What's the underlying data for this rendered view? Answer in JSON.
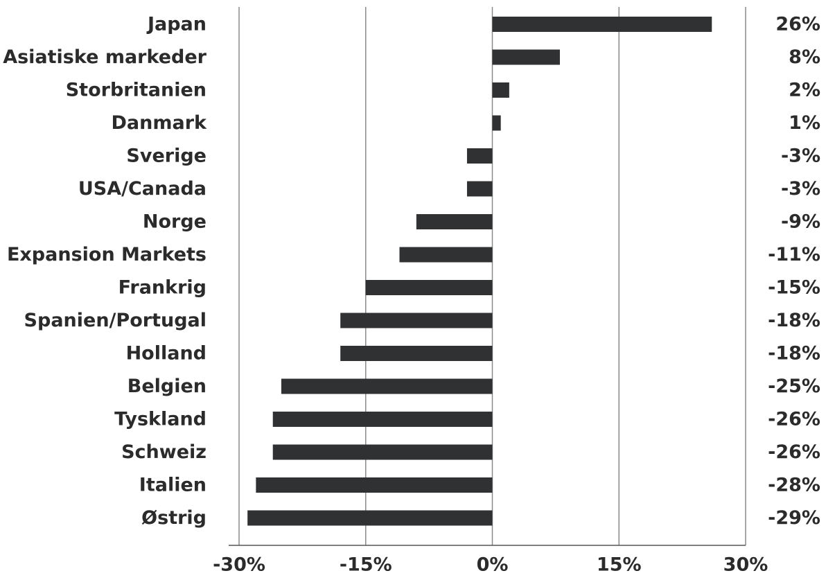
{
  "chart_data": {
    "type": "bar",
    "orientation": "horizontal",
    "categories": [
      "Japan",
      "Asiatiske markeder",
      "Storbritanien",
      "Danmark",
      "Sverige",
      "USA/Canada",
      "Norge",
      "Expansion Markets",
      "Frankrig",
      "Spanien/Portugal",
      "Holland",
      "Belgien",
      "Tyskland",
      "Schweiz",
      "Italien",
      "Østrig"
    ],
    "values": [
      26,
      8,
      2,
      1,
      -3,
      -3,
      -9,
      -11,
      -15,
      -18,
      -18,
      -25,
      -26,
      -26,
      -28,
      -29
    ],
    "value_labels": [
      "26%",
      "8%",
      "2%",
      "1%",
      "-3%",
      "-3%",
      "-9%",
      "-11%",
      "-15%",
      "-18%",
      "-18%",
      "-25%",
      "-26%",
      "-26%",
      "-28%",
      "-29%"
    ],
    "xlim": [
      -30,
      30
    ],
    "xticks": [
      -30,
      -15,
      0,
      15,
      30
    ],
    "xtick_labels": [
      "-30%",
      "-15%",
      "0%",
      "15%",
      "30%"
    ],
    "grid": true,
    "legend": false,
    "colors": {
      "bar": "#2f3133",
      "grid": "#8a8a8a",
      "text": "#2b2b2b"
    }
  }
}
